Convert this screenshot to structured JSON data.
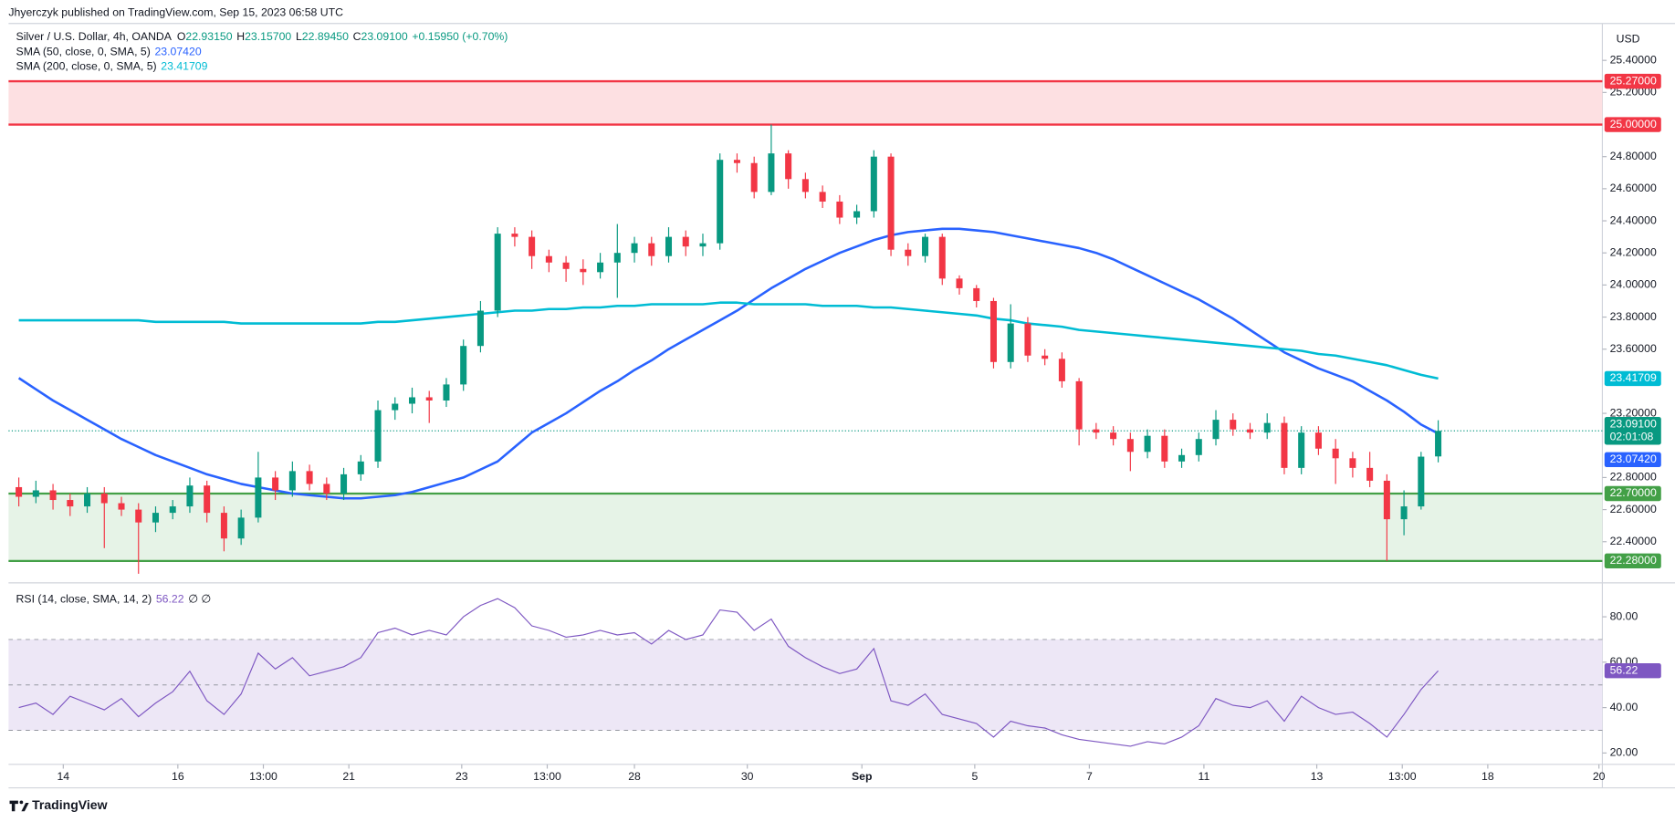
{
  "header": {
    "byline": "Jhyerczyk published on TradingView.com, Sep 15, 2023 06:58 UTC"
  },
  "footer": {
    "brand": "TradingView"
  },
  "chart_data": [
    {
      "type": "candlestick",
      "title": "Silver / U.S. Dollar, 4h, OANDA",
      "ohlc_legend": [
        {
          "label": "O",
          "value": "22.93150"
        },
        {
          "label": "H",
          "value": "23.15700"
        },
        {
          "label": "L",
          "value": "22.89450"
        },
        {
          "label": "C",
          "value": "23.09100"
        }
      ],
      "change": "+0.15950 (+0.70%)",
      "axis_unit": "USD",
      "xlim": [
        -0.6,
        92.6
      ],
      "xticks": [
        {
          "value": 2.6,
          "label": "14"
        },
        {
          "value": 9.3,
          "label": "16"
        },
        {
          "value": 14.3,
          "label": "13:00"
        },
        {
          "value": 19.3,
          "label": "21"
        },
        {
          "value": 25.9,
          "label": "23"
        },
        {
          "value": 30.9,
          "label": "13:00"
        },
        {
          "value": 36.0,
          "label": "28"
        },
        {
          "value": 42.6,
          "label": "30"
        },
        {
          "value": 49.3,
          "label": "Sep"
        },
        {
          "value": 55.9,
          "label": "5"
        },
        {
          "value": 62.6,
          "label": "7"
        },
        {
          "value": 69.3,
          "label": "11"
        },
        {
          "value": 75.9,
          "label": "13"
        },
        {
          "value": 80.9,
          "label": "13:00"
        },
        {
          "value": 85.9,
          "label": "18"
        },
        {
          "value": 92.4,
          "label": "20"
        }
      ],
      "ylim": [
        22.15,
        25.59
      ],
      "yticks": [
        {
          "value": 25.4,
          "label": "25.40000"
        },
        {
          "value": 25.2,
          "label": "25.20000"
        },
        {
          "value": 24.8,
          "label": "24.80000"
        },
        {
          "value": 24.6,
          "label": "24.60000"
        },
        {
          "value": 24.4,
          "label": "24.40000"
        },
        {
          "value": 24.2,
          "label": "24.20000"
        },
        {
          "value": 24.0,
          "label": "24.00000"
        },
        {
          "value": 23.8,
          "label": "23.80000"
        },
        {
          "value": 23.6,
          "label": "23.60000"
        },
        {
          "value": 23.2,
          "label": "23.20000"
        },
        {
          "value": 22.8,
          "label": "22.80000"
        },
        {
          "value": 22.6,
          "label": "22.60000"
        },
        {
          "value": 22.4,
          "label": "22.40000"
        }
      ],
      "up_color": "#089981",
      "down_color": "#f23645",
      "open": [
        22.74,
        22.68,
        22.72,
        22.66,
        22.62,
        22.7,
        22.64,
        22.6,
        22.52,
        22.58,
        22.62,
        22.75,
        22.58,
        22.42,
        22.55,
        22.8,
        22.72,
        22.84,
        22.76,
        22.7,
        22.82,
        22.9,
        23.22,
        23.26,
        23.3,
        23.28,
        23.38,
        23.62,
        23.84,
        24.32,
        24.3,
        24.18,
        24.14,
        24.1,
        24.08,
        24.14,
        24.2,
        24.26,
        24.18,
        24.3,
        24.24,
        24.26,
        24.78,
        24.76,
        24.58,
        24.82,
        24.66,
        24.58,
        24.52,
        24.42,
        24.46,
        24.8,
        24.22,
        24.18,
        24.3,
        24.04,
        23.98,
        23.9,
        23.52,
        23.76,
        23.56,
        23.54,
        23.4,
        23.1,
        23.08,
        23.04,
        22.96,
        23.06,
        22.9,
        22.94,
        23.04,
        23.16,
        23.1,
        23.08,
        23.14,
        22.86,
        23.08,
        22.98,
        22.92,
        22.86,
        22.78,
        22.54,
        22.62,
        22.9315
      ],
      "high": [
        22.8,
        22.78,
        22.76,
        22.7,
        22.74,
        22.74,
        22.68,
        22.64,
        22.62,
        22.66,
        22.8,
        22.78,
        22.62,
        22.6,
        22.96,
        22.84,
        22.9,
        22.88,
        22.8,
        22.86,
        22.94,
        23.28,
        23.3,
        23.36,
        23.34,
        23.42,
        23.66,
        23.9,
        24.36,
        24.36,
        24.34,
        24.22,
        24.18,
        24.16,
        24.2,
        24.38,
        24.3,
        24.3,
        24.36,
        24.34,
        24.32,
        24.82,
        24.82,
        24.8,
        25.0,
        24.84,
        24.7,
        24.62,
        24.56,
        24.5,
        24.84,
        24.82,
        24.26,
        24.32,
        24.32,
        24.06,
        24.0,
        23.92,
        23.88,
        23.8,
        23.6,
        23.58,
        23.42,
        23.14,
        23.12,
        23.08,
        23.1,
        23.1,
        22.98,
        23.08,
        23.22,
        23.2,
        23.14,
        23.2,
        23.18,
        23.12,
        23.12,
        23.04,
        22.96,
        22.96,
        22.82,
        22.72,
        22.96,
        23.157
      ],
      "low": [
        22.62,
        22.64,
        22.6,
        22.56,
        22.58,
        22.36,
        22.56,
        22.2,
        22.46,
        22.54,
        22.58,
        22.52,
        22.34,
        22.38,
        22.52,
        22.66,
        22.68,
        22.72,
        22.66,
        22.66,
        22.78,
        22.86,
        23.16,
        23.2,
        23.14,
        23.24,
        23.34,
        23.58,
        23.8,
        24.24,
        24.1,
        24.08,
        24.02,
        24.0,
        24.04,
        23.92,
        24.14,
        24.12,
        24.14,
        24.18,
        24.18,
        24.22,
        24.7,
        24.54,
        24.56,
        24.6,
        24.54,
        24.48,
        24.38,
        24.38,
        24.42,
        24.18,
        24.12,
        24.14,
        24.0,
        23.94,
        23.86,
        23.48,
        23.48,
        23.52,
        23.5,
        23.36,
        23.0,
        23.04,
        23.0,
        22.84,
        22.92,
        22.86,
        22.86,
        22.9,
        23.0,
        23.06,
        23.04,
        23.04,
        22.82,
        22.82,
        22.94,
        22.76,
        22.8,
        22.74,
        22.28,
        22.44,
        22.6,
        22.8945
      ],
      "close": [
        22.68,
        22.72,
        22.66,
        22.62,
        22.7,
        22.64,
        22.6,
        22.52,
        22.58,
        22.62,
        22.75,
        22.58,
        22.42,
        22.55,
        22.8,
        22.72,
        22.84,
        22.76,
        22.7,
        22.82,
        22.9,
        23.22,
        23.26,
        23.3,
        23.28,
        23.38,
        23.62,
        23.84,
        24.32,
        24.3,
        24.18,
        24.14,
        24.1,
        24.08,
        24.14,
        24.2,
        24.26,
        24.18,
        24.3,
        24.24,
        24.26,
        24.78,
        24.76,
        24.58,
        24.82,
        24.66,
        24.58,
        24.52,
        24.42,
        24.46,
        24.8,
        24.22,
        24.18,
        24.3,
        24.04,
        23.98,
        23.9,
        23.52,
        23.76,
        23.56,
        23.54,
        23.4,
        23.1,
        23.08,
        23.04,
        22.96,
        23.06,
        22.9,
        22.94,
        23.04,
        23.16,
        23.1,
        23.08,
        23.14,
        22.86,
        23.08,
        22.98,
        22.92,
        22.86,
        22.78,
        22.54,
        22.62,
        22.93,
        23.091
      ],
      "last_price_label": "23.09100",
      "countdown": "02:01:08",
      "zones": [
        {
          "low": {
            "value": 25.0,
            "label": "25.00000"
          },
          "high": {
            "value": 25.27,
            "label": "25.27000"
          },
          "color": "#f23645",
          "fill": "#fde0e2"
        },
        {
          "low": {
            "value": 22.28,
            "label": "22.28000"
          },
          "high": {
            "value": 22.7,
            "label": "22.70000"
          },
          "color": "#43a047",
          "fill": "#e6f3e7"
        }
      ],
      "series": [
        {
          "name": "SMA (50, close, 0, SMA, 5)",
          "color": "#2962ff",
          "last_label": "23.07420",
          "values": [
            23.42,
            23.35,
            23.28,
            23.22,
            23.16,
            23.1,
            23.04,
            22.99,
            22.94,
            22.9,
            22.86,
            22.82,
            22.79,
            22.76,
            22.74,
            22.72,
            22.7,
            22.69,
            22.68,
            22.67,
            22.67,
            22.68,
            22.69,
            22.71,
            22.74,
            22.77,
            22.8,
            22.85,
            22.9,
            22.99,
            23.08,
            23.14,
            23.2,
            23.27,
            23.34,
            23.4,
            23.47,
            23.53,
            23.6,
            23.66,
            23.72,
            23.78,
            23.84,
            23.91,
            23.98,
            24.04,
            24.1,
            24.15,
            24.2,
            24.24,
            24.28,
            24.31,
            24.33,
            24.34,
            24.35,
            24.35,
            24.34,
            24.33,
            24.31,
            24.29,
            24.27,
            24.25,
            24.23,
            24.2,
            24.16,
            24.11,
            24.06,
            24.01,
            23.96,
            23.91,
            23.85,
            23.79,
            23.72,
            23.65,
            23.58,
            23.53,
            23.48,
            23.44,
            23.4,
            23.34,
            23.28,
            23.21,
            23.13,
            23.0742
          ]
        },
        {
          "name": "SMA (200, close, 0, SMA, 5)",
          "color": "#00bcd4",
          "last_label": "23.41709",
          "values": [
            23.78,
            23.78,
            23.78,
            23.78,
            23.78,
            23.78,
            23.78,
            23.78,
            23.77,
            23.77,
            23.77,
            23.77,
            23.77,
            23.76,
            23.76,
            23.76,
            23.76,
            23.76,
            23.76,
            23.76,
            23.76,
            23.77,
            23.77,
            23.78,
            23.79,
            23.8,
            23.81,
            23.82,
            23.83,
            23.84,
            23.84,
            23.85,
            23.85,
            23.86,
            23.86,
            23.87,
            23.87,
            23.88,
            23.88,
            23.88,
            23.88,
            23.89,
            23.89,
            23.88,
            23.88,
            23.88,
            23.88,
            23.87,
            23.87,
            23.87,
            23.86,
            23.86,
            23.85,
            23.84,
            23.83,
            23.82,
            23.81,
            23.79,
            23.78,
            23.76,
            23.75,
            23.74,
            23.72,
            23.71,
            23.7,
            23.69,
            23.68,
            23.67,
            23.66,
            23.65,
            23.64,
            23.63,
            23.62,
            23.61,
            23.6,
            23.59,
            23.57,
            23.56,
            23.54,
            23.52,
            23.5,
            23.47,
            23.44,
            23.41709
          ]
        }
      ]
    },
    {
      "type": "line",
      "legend_value": "56.22",
      "legend_extra": "∅ ∅",
      "ylim": [
        15,
        94
      ],
      "yticks": [
        {
          "value": 20,
          "label": "20.00"
        },
        {
          "value": 40,
          "label": "40.00"
        },
        {
          "value": 60,
          "label": "60.00"
        },
        {
          "value": 80,
          "label": "80.00"
        }
      ],
      "levels": [
        30,
        50,
        70
      ],
      "band_fill": "#ede7f6",
      "series": [
        {
          "name": "RSI (14, close, SMA, 14, 2)",
          "color": "#7e57c2",
          "last_label": "56.22",
          "values": [
            40,
            42,
            37,
            45,
            42,
            39,
            44,
            36,
            42,
            47,
            56,
            43,
            37,
            46,
            64,
            57,
            62,
            54,
            56,
            58,
            62,
            73,
            75,
            72,
            74,
            72,
            80,
            85,
            88,
            84,
            76,
            74,
            71,
            72,
            74,
            72,
            73,
            68,
            74,
            70,
            72,
            83,
            82,
            74,
            79,
            67,
            62,
            58,
            55,
            57,
            66,
            43,
            41,
            46,
            37,
            35,
            33,
            27,
            34,
            32,
            31,
            28,
            26,
            25,
            24,
            23,
            25,
            24,
            27,
            32,
            44,
            41,
            40,
            43,
            34,
            45,
            40,
            37,
            38,
            33,
            27,
            37,
            48,
            56.22
          ]
        }
      ]
    }
  ]
}
